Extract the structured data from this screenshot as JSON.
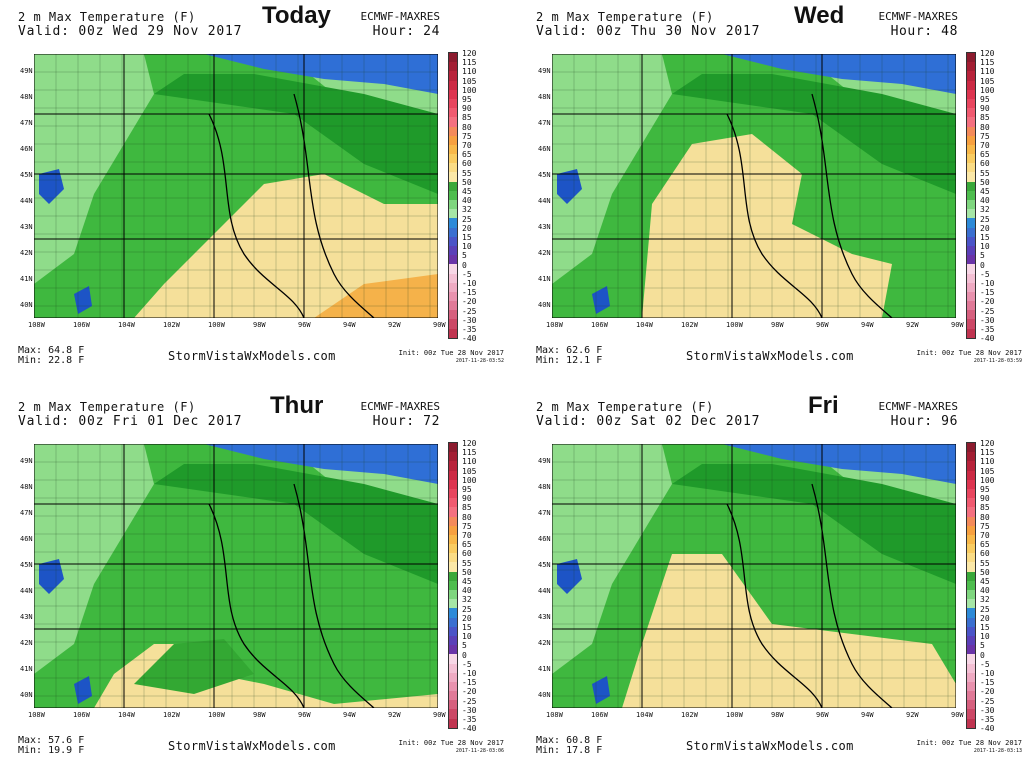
{
  "panels": [
    {
      "day_label": "Today",
      "title": "2 m Max Temperature (F)",
      "valid": "Valid: 00z Wed 29 Nov 2017",
      "model": "ECMWF-MAXRES",
      "hour": "Hour: 24",
      "max": "Max: 64.8 F",
      "min": "Min: 22.8 F",
      "site": "StormVistaWxModels.com",
      "init": "Init: 00z Tue 28 Nov 2017",
      "stamp": "2017-11-28-03:52"
    },
    {
      "day_label": "Wed",
      "title": "2 m Max Temperature (F)",
      "valid": "Valid: 00z Thu 30 Nov 2017",
      "model": "ECMWF-MAXRES",
      "hour": "Hour: 48",
      "max": "Max: 62.6 F",
      "min": "Min: 12.1 F",
      "site": "StormVistaWxModels.com",
      "init": "Init: 00z Tue 28 Nov 2017",
      "stamp": "2017-11-28-03:59"
    },
    {
      "day_label": "Thur",
      "title": "2 m Max Temperature (F)",
      "valid": "Valid: 00z Fri 01 Dec 2017",
      "model": "ECMWF-MAXRES",
      "hour": "Hour: 72",
      "max": "Max: 57.6 F",
      "min": "Min: 19.9 F",
      "site": "StormVistaWxModels.com",
      "init": "Init: 00z Tue 28 Nov 2017",
      "stamp": "2017-11-28-03:06"
    },
    {
      "day_label": "Fri",
      "title": "2 m Max Temperature (F)",
      "valid": "Valid: 00z Sat 02 Dec 2017",
      "model": "ECMWF-MAXRES",
      "hour": "Hour: 96",
      "max": "Max: 60.8 F",
      "min": "Min: 17.8 F",
      "site": "StormVistaWxModels.com",
      "init": "Init: 00z Tue 28 Nov 2017",
      "stamp": "2017-11-28-03:13"
    }
  ],
  "latitudes": [
    "49N",
    "48N",
    "47N",
    "46N",
    "45N",
    "44N",
    "43N",
    "42N",
    "41N",
    "40N"
  ],
  "longitudes": [
    "108W",
    "106W",
    "104W",
    "102W",
    "100W",
    "98W",
    "96W",
    "94W",
    "92W",
    "90W"
  ],
  "colorbar": {
    "labels": [
      "120",
      "115",
      "110",
      "105",
      "100",
      "95",
      "90",
      "85",
      "80",
      "75",
      "70",
      "65",
      "60",
      "55",
      "50",
      "45",
      "40",
      "32",
      "25",
      "20",
      "15",
      "10",
      "5",
      "0",
      "-5",
      "-10",
      "-15",
      "-20",
      "-25",
      "-30",
      "-35",
      "-40"
    ],
    "colors": [
      "#8c1b2e",
      "#a31e33",
      "#b8233b",
      "#cc2a44",
      "#dd3550",
      "#e8465f",
      "#f05a70",
      "#f47080",
      "#f48a5a",
      "#f7a040",
      "#f8b84a",
      "#f9cc62",
      "#fadc86",
      "#fbe8a8",
      "#3aa83a",
      "#4ebd4e",
      "#7fd67f",
      "#a6e6a6",
      "#2d8ad8",
      "#3a6fd0",
      "#4a54c8",
      "#5a40b8",
      "#6a34a8",
      "#f7d7e6",
      "#f3c0d4",
      "#eeaac2",
      "#e892ae",
      "#e07a98",
      "#d6607e",
      "#cc4866",
      "#c03450"
    ]
  },
  "icons": {
    "legend_bar": "temperature-colorbar",
    "map": "regional-temperature-map"
  }
}
